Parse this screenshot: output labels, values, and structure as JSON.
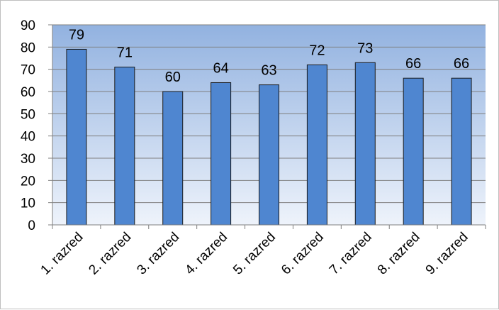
{
  "chart_data": {
    "type": "bar",
    "categories": [
      "1. razred",
      "2. razred",
      "3. razred",
      "4. razred",
      "5. razred",
      "6. razred",
      "7. razred",
      "8. razred",
      "9. razred"
    ],
    "values": [
      79,
      71,
      60,
      64,
      63,
      72,
      73,
      66,
      66
    ],
    "data_labels": [
      "79",
      "71",
      "60",
      "64",
      "63",
      "72",
      "73",
      "66",
      "66"
    ],
    "y_ticks": [
      "0",
      "10",
      "20",
      "30",
      "40",
      "50",
      "60",
      "70",
      "80",
      "90"
    ],
    "ylim": [
      0,
      90
    ],
    "grid": true,
    "legend": "none",
    "colors": {
      "bar_fill": "#4f86d0",
      "bar_stroke": "#1a1a1a",
      "plot_bg_top": "#92b2e0",
      "plot_bg_bottom": "#eef3fb",
      "grid": "#7f7f7f"
    }
  }
}
